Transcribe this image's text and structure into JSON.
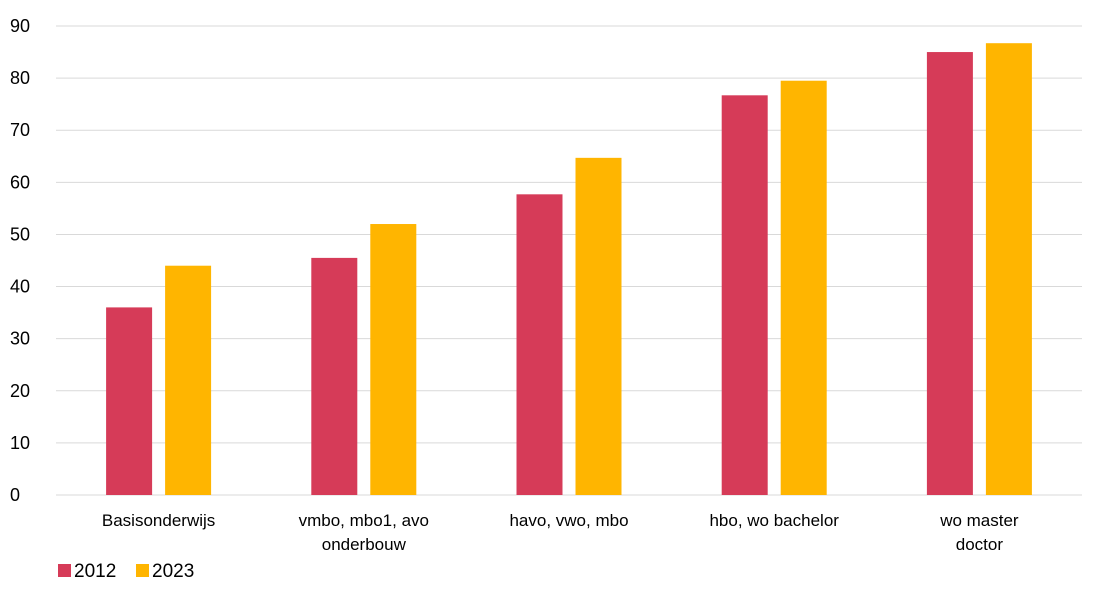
{
  "chart_data": {
    "type": "bar",
    "title": "",
    "xlabel": "",
    "ylabel": "",
    "ylim": [
      0,
      90
    ],
    "yticks": [
      0,
      10,
      20,
      30,
      40,
      50,
      60,
      70,
      80,
      90
    ],
    "grid": true,
    "legend_position": "bottom-left",
    "categories": [
      [
        "Basisonderwijs"
      ],
      [
        "vmbo, mbo1, avo",
        "onderbouw"
      ],
      [
        "havo, vwo, mbo"
      ],
      [
        "hbo, wo bachelor"
      ],
      [
        "wo master",
        "doctor"
      ]
    ],
    "series": [
      {
        "name": "2012",
        "color": "#d63b58",
        "values": [
          36,
          45.5,
          57.7,
          76.7,
          85
        ]
      },
      {
        "name": "2023",
        "color": "#ffb500",
        "values": [
          44,
          52,
          64.7,
          79.5,
          86.7
        ]
      }
    ]
  }
}
